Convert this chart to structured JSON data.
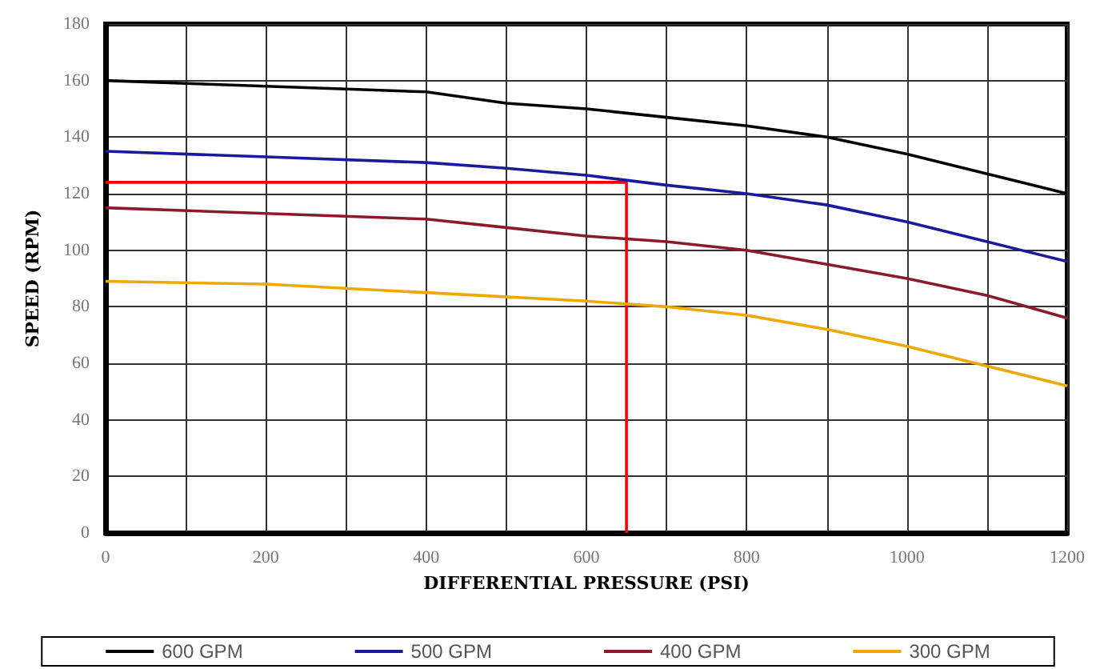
{
  "chart_data": {
    "type": "line",
    "xlabel": "DIFFERENTIAL PRESSURE (PSI)",
    "ylabel": "SPEED (RPM)",
    "xlim": [
      0,
      1200
    ],
    "xticks": [
      0,
      {
        "value": 100,
        "label": null
      },
      200,
      {
        "value": 300,
        "label": null
      },
      400,
      {
        "value": 500,
        "label": null
      },
      600,
      {
        "value": 700,
        "label": null
      },
      800,
      {
        "value": 900,
        "label": null
      },
      1000,
      {
        "value": 1100,
        "label": null
      },
      1200
    ],
    "ylim": [
      0,
      180
    ],
    "yticks": [
      0,
      20,
      40,
      60,
      80,
      100,
      120,
      140,
      160,
      180
    ],
    "grid": true,
    "legend": "bottom",
    "marker": "none",
    "line_style": "solid",
    "series": [
      {
        "name": "600 GPM",
        "color": "#000000",
        "x": [
          0,
          100,
          200,
          300,
          400,
          500,
          600,
          700,
          800,
          900,
          1000,
          1100,
          1200
        ],
        "values": [
          160,
          159,
          158,
          157,
          156,
          152,
          150,
          147,
          144,
          140,
          134,
          127,
          120
        ]
      },
      {
        "name": "500 GPM",
        "color": "#1a1a9c",
        "x": [
          0,
          200,
          400,
          500,
          600,
          700,
          800,
          900,
          1000,
          1100,
          1200
        ],
        "values": [
          135,
          133,
          131,
          129,
          126.5,
          123,
          120,
          116,
          110,
          103,
          96
        ]
      },
      {
        "name": "400 GPM",
        "color": "#8b1a2a",
        "x": [
          0,
          200,
          400,
          500,
          600,
          700,
          800,
          900,
          1000,
          1100,
          1200
        ],
        "values": [
          115,
          113,
          111,
          108,
          105,
          103,
          100,
          95,
          90,
          84,
          76
        ]
      },
      {
        "name": "300 GPM",
        "color": "#f0a800",
        "x": [
          0,
          200,
          400,
          600,
          700,
          800,
          900,
          1000,
          1100,
          1200
        ],
        "values": [
          89,
          88,
          85,
          82,
          80,
          77,
          72,
          66,
          59,
          52
        ]
      },
      {
        "color": "#ff0000",
        "x": [
          0,
          650,
          650
        ],
        "values": [
          124,
          124,
          0
        ]
      }
    ]
  }
}
